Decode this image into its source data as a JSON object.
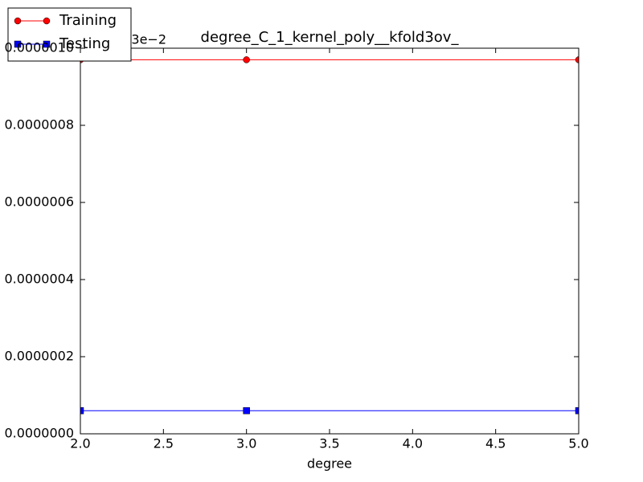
{
  "chart_data": {
    "type": "line",
    "title": "degree_C_1_kernel_poly__kfold3ov_",
    "x_label": "degree",
    "offset_text": "3e−2",
    "x": [
      2,
      3,
      5
    ],
    "series": [
      {
        "name": "Training",
        "color": "#ff0000",
        "marker": "circle",
        "values": [
          9.7e-07,
          9.7e-07,
          9.7e-07
        ]
      },
      {
        "name": "Testing",
        "color": "#0000ff",
        "marker": "square",
        "values": [
          6e-08,
          6e-08,
          6e-08
        ]
      }
    ],
    "xlim": [
      2,
      5
    ],
    "xticks": [
      {
        "value": 2,
        "label": "2.0"
      },
      {
        "value": 2.5,
        "label": "2.5"
      },
      {
        "value": 3,
        "label": "3.0"
      },
      {
        "value": 3.5,
        "label": "3.5"
      },
      {
        "value": 4,
        "label": "4.0"
      },
      {
        "value": 4.5,
        "label": "4.5"
      },
      {
        "value": 5,
        "label": "5.0"
      }
    ],
    "ylim": [
      0,
      1e-06
    ],
    "yticks": [
      {
        "value": 0,
        "label": "0.0000000"
      },
      {
        "value": 2e-07,
        "label": "0.0000002"
      },
      {
        "value": 4e-07,
        "label": "0.0000004"
      },
      {
        "value": 6e-07,
        "label": "0.0000006"
      },
      {
        "value": 8e-07,
        "label": "0.0000008"
      },
      {
        "value": 1e-06,
        "label": "0.0000010"
      }
    ],
    "legend": "upper left"
  }
}
